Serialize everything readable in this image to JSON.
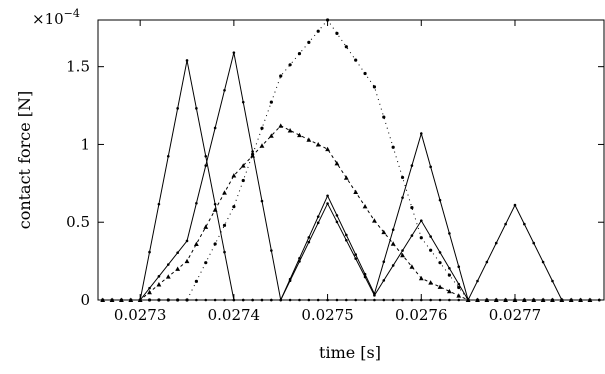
{
  "chart_data": {
    "type": "line",
    "xlabel": "time [s]",
    "ylabel": "contact force [N]",
    "y_multiplier": "×10",
    "y_multiplier_exp": "−4",
    "xlim": [
      0.027255,
      0.027795
    ],
    "ylim": [
      0,
      1.8
    ],
    "xticks": [
      0.0273,
      0.0274,
      0.0275,
      0.0276,
      0.0277
    ],
    "xtick_labels": [
      "0.0273",
      "0.0274",
      "0.0275",
      "0.0276",
      "0.0277"
    ],
    "yticks": [
      0,
      0.5,
      1,
      1.5
    ],
    "ytick_labels": [
      "0",
      "0.5",
      "1",
      "1.5"
    ],
    "grid": false,
    "series": [
      {
        "style": "solid",
        "x": [
          0.02726,
          0.0273,
          0.02735,
          0.0274,
          0.02745,
          0.0275,
          0.02755,
          0.0276,
          0.02765,
          0.0277,
          0.02775,
          0.02779
        ],
        "y": [
          0,
          0,
          1.54,
          0,
          0,
          0,
          0,
          0,
          0,
          0,
          0,
          0
        ]
      },
      {
        "style": "solid",
        "x": [
          0.02726,
          0.0273,
          0.02735,
          0.0274,
          0.02745,
          0.0275,
          0.02755,
          0.0276,
          0.02765,
          0.0277,
          0.02775,
          0.02779
        ],
        "y": [
          0,
          0,
          0.38,
          1.59,
          0,
          0.67,
          0.04,
          1.07,
          0,
          0,
          0,
          0
        ]
      },
      {
        "style": "solid",
        "x": [
          0.02726,
          0.0273,
          0.02735,
          0.0274,
          0.02745,
          0.0275,
          0.02755,
          0.0276,
          0.02765,
          0.0277,
          0.02775,
          0.02779
        ],
        "y": [
          0,
          0,
          0,
          0,
          0,
          0.62,
          0.03,
          0.51,
          0,
          0.61,
          0,
          0
        ]
      },
      {
        "style": "dashdot",
        "x": [
          0.02726,
          0.0273,
          0.02735,
          0.0274,
          0.02745,
          0.0275,
          0.02755,
          0.0276,
          0.02765,
          0.0277,
          0.02775,
          0.02779
        ],
        "y": [
          0,
          0,
          0.25,
          0.8,
          1.12,
          0.97,
          0.51,
          0.14,
          0,
          0,
          0,
          0
        ]
      },
      {
        "style": "dotted",
        "x": [
          0.02726,
          0.0273,
          0.02735,
          0.0274,
          0.02745,
          0.0275,
          0.02755,
          0.0276,
          0.02765,
          0.0277,
          0.02775,
          0.02779
        ],
        "y": [
          0,
          0,
          0,
          0.6,
          1.44,
          1.8,
          1.37,
          0.4,
          0,
          0,
          0,
          0
        ]
      }
    ]
  }
}
